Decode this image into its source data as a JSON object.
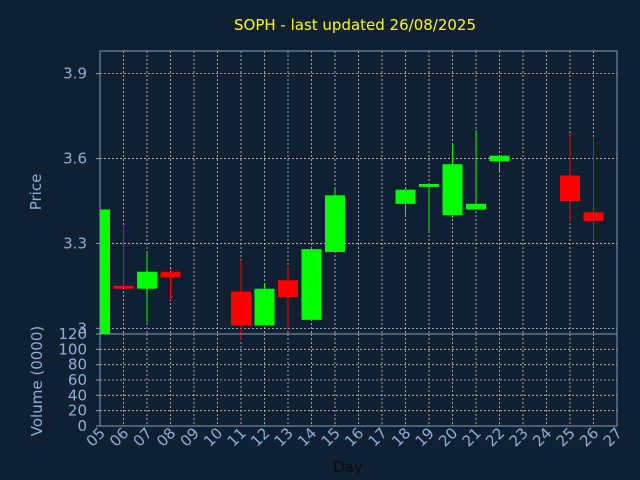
{
  "chart_data": {
    "type": "candlestick",
    "title": "SOPH - last updated 26/08/2025",
    "xlabel": "Day",
    "x_ticks": [
      "05",
      "06",
      "07",
      "08",
      "09",
      "10",
      "11",
      "12",
      "13",
      "14",
      "15",
      "16",
      "17",
      "18",
      "19",
      "20",
      "21",
      "22",
      "23",
      "24",
      "25",
      "26",
      "27"
    ],
    "price_panel": {
      "ylabel": "Price",
      "ylim": [
        2.98,
        3.98
      ],
      "y_ticks": [
        3,
        3.3,
        3.6,
        3.9
      ],
      "y_tick_labels": [
        "3",
        "3.3",
        "3.6",
        "3.9"
      ],
      "grid": true
    },
    "volume_panel": {
      "ylabel": "Volume (0000)",
      "ylim": [
        0,
        120
      ],
      "y_ticks": [
        0,
        20,
        40,
        60,
        80,
        100,
        120
      ],
      "y_tick_labels": [
        "0",
        "20",
        "40",
        "60",
        "80",
        "100",
        "120"
      ],
      "grid": true
    },
    "candles": [
      {
        "day": "05",
        "open": 2.98,
        "high": 3.42,
        "low": 2.98,
        "close": 3.42,
        "volume": 0
      },
      {
        "day": "06",
        "open": 3.15,
        "high": 3.36,
        "low": 3.14,
        "close": 3.14,
        "volume": 0.5
      },
      {
        "day": "07",
        "open": 3.14,
        "high": 3.27,
        "low": 3.02,
        "close": 3.2,
        "volume": 0.5
      },
      {
        "day": "08",
        "open": 3.2,
        "high": 3.21,
        "low": 3.1,
        "close": 3.18,
        "volume": 0.5
      },
      {
        "day": "11",
        "open": 3.13,
        "high": 3.24,
        "low": 2.96,
        "close": 3.01,
        "volume": 0.5
      },
      {
        "day": "12",
        "open": 3.01,
        "high": 3.16,
        "low": 3.01,
        "close": 3.14,
        "volume": 0.5
      },
      {
        "day": "13",
        "open": 3.17,
        "high": 3.22,
        "low": 3.0,
        "close": 3.11,
        "volume": 0.5
      },
      {
        "day": "14",
        "open": 3.03,
        "high": 3.28,
        "low": 3.03,
        "close": 3.28,
        "volume": 0.5
      },
      {
        "day": "15",
        "open": 3.27,
        "high": 3.5,
        "low": 3.27,
        "close": 3.47,
        "volume": 0.5
      },
      {
        "day": "18",
        "open": 3.44,
        "high": 3.49,
        "low": 3.4,
        "close": 3.49,
        "volume": 0.5
      },
      {
        "day": "19",
        "open": 3.5,
        "high": 3.51,
        "low": 3.34,
        "close": 3.51,
        "volume": 0.5
      },
      {
        "day": "20",
        "open": 3.4,
        "high": 3.65,
        "low": 3.39,
        "close": 3.58,
        "volume": 0.5
      },
      {
        "day": "21",
        "open": 3.42,
        "high": 3.7,
        "low": 3.42,
        "close": 3.44,
        "volume": 0.5
      },
      {
        "day": "22",
        "open": 3.59,
        "high": 3.61,
        "low": 3.55,
        "close": 3.61,
        "volume": 0.5
      },
      {
        "day": "25",
        "open": 3.54,
        "high": 3.69,
        "low": 3.38,
        "close": 3.45,
        "volume": 0.5
      },
      {
        "day": "26",
        "open": 3.41,
        "high": 3.67,
        "low": 3.31,
        "close": 3.38,
        "volume": 0.5
      }
    ],
    "colors": {
      "background": "#0f2033",
      "up": "#00ff00",
      "down": "#ff0000",
      "grid": "#c8c8c8",
      "frame": "#8a9bb0",
      "title": "#ffff00",
      "tick": "#8fb0d6",
      "xlabel": "#0b0b0b"
    }
  }
}
